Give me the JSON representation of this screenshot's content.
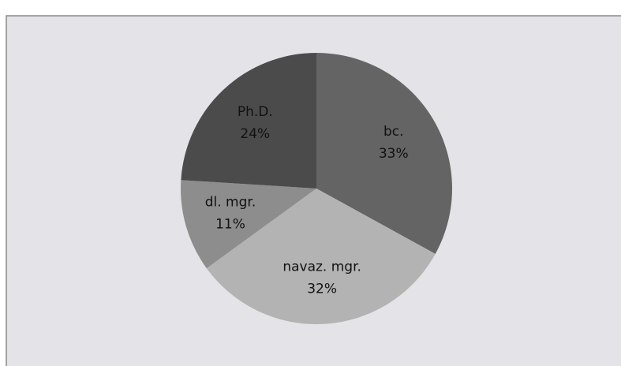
{
  "chart_data": {
    "type": "pie",
    "categories": [
      "bc.",
      "navaz. mgr.",
      "dl. mgr.",
      "Ph.D."
    ],
    "values": [
      33,
      32,
      11,
      24
    ],
    "value_labels": [
      "33%",
      "32%",
      "11%",
      "24%"
    ],
    "colors": [
      "#646464",
      "#b3b3b3",
      "#8d8d8d",
      "#4b4b4b"
    ],
    "start_angle": 0,
    "direction": "clockwise"
  }
}
